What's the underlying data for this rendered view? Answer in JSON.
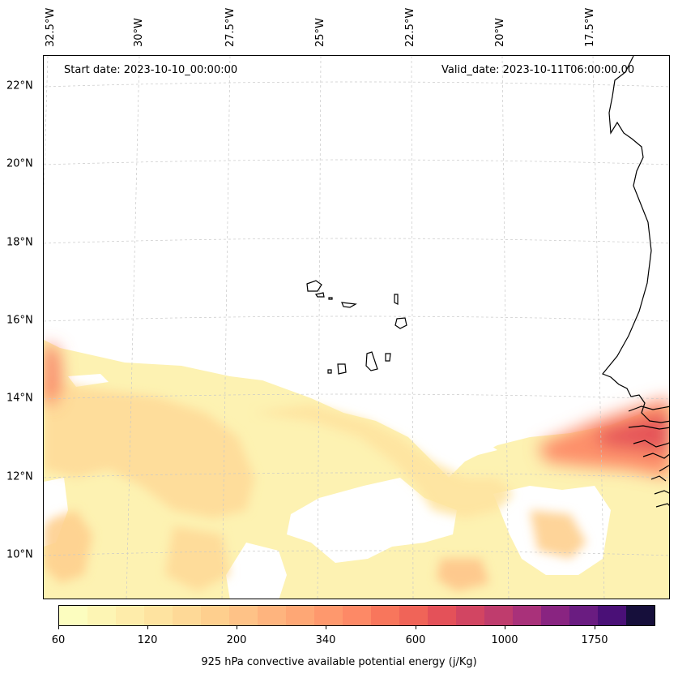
{
  "header": {
    "start_date": "Start date: 2023-10-10_00:00:00",
    "valid_date": "Valid_date: 2023-10-11T06:00:00.00"
  },
  "axes": {
    "lon_labels": [
      "32.5°W",
      "30°W",
      "27.5°W",
      "25°W",
      "22.5°W",
      "20°W",
      "17.5°W"
    ],
    "lat_labels": [
      "22°N",
      "20°N",
      "18°N",
      "16°N",
      "14°N",
      "12°N",
      "10°N"
    ],
    "grid": true
  },
  "colorbar": {
    "label": "925 hPa convective available potential energy (j/Kg)",
    "tick_labels": [
      "60",
      "120",
      "200",
      "340",
      "600",
      "1000",
      "1750"
    ],
    "colors": [
      "#fcfdbf",
      "#fdf5b4",
      "#feecaa",
      "#fee3a0",
      "#fed997",
      "#fecf8e",
      "#fec287",
      "#feb47e",
      "#fea775",
      "#fe986d",
      "#fd8966",
      "#f8765c",
      "#f06458",
      "#e45159",
      "#d24562",
      "#bf3c6d",
      "#a9317a",
      "#892481",
      "#6a1c81",
      "#4a1077",
      "#160f3b"
    ]
  },
  "map": {
    "field": "925 hPa convective available potential energy",
    "region": "Eastern tropical Atlantic, Cape Verde and West African coast",
    "land_outline_color": "#000000",
    "gridline_color": "#c8c8c8"
  }
}
